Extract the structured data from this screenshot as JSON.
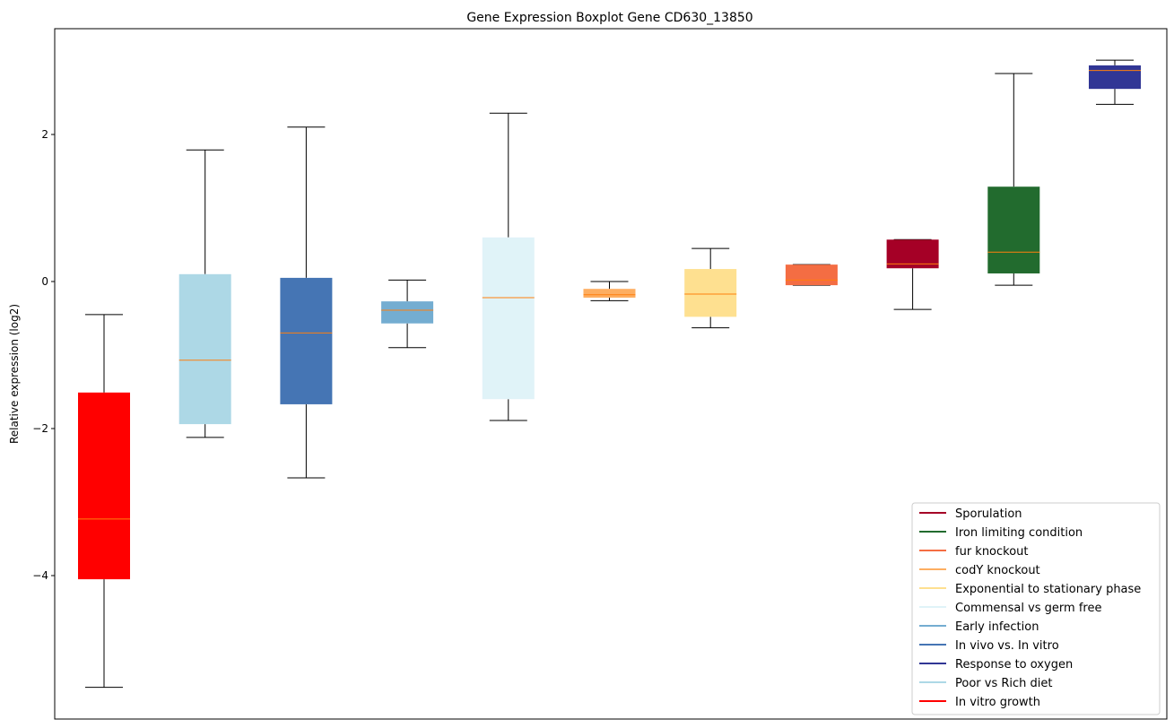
{
  "chart_data": {
    "type": "box",
    "title": "Gene Expression Boxplot Gene CD630_13850",
    "xlabel": "",
    "ylabel": "Relative expression (log2)",
    "ylim": [
      -5.85,
      3.55
    ],
    "yticks": [
      2,
      0,
      -2,
      -4
    ],
    "ytick_labels": [
      "2",
      "0",
      "−2",
      "−4"
    ],
    "legend_position": "lower-right",
    "median_color": "#ff7f0e",
    "boxes": [
      {
        "name": "In vitro growth",
        "color": "#ff0000",
        "whislo": -5.52,
        "q1": -4.05,
        "med": -3.23,
        "q3": -1.51,
        "whishi": -0.45
      },
      {
        "name": "Poor vs Rich diet",
        "color": "#add8e6",
        "whislo": -2.12,
        "q1": -1.94,
        "med": -1.07,
        "q3": 0.1,
        "whishi": 1.79
      },
      {
        "name": "In vivo vs. In vitro",
        "color": "#4575b4",
        "whislo": -2.67,
        "q1": -1.67,
        "med": -0.7,
        "q3": 0.05,
        "whishi": 2.1
      },
      {
        "name": "Early infection",
        "color": "#74add1",
        "whislo": -0.9,
        "q1": -0.57,
        "med": -0.39,
        "q3": -0.27,
        "whishi": 0.02
      },
      {
        "name": "Commensal vs germ free",
        "color": "#e0f3f8",
        "whislo": -1.89,
        "q1": -1.6,
        "med": -0.22,
        "q3": 0.6,
        "whishi": 2.29
      },
      {
        "name": "codY knockout",
        "color": "#fdae61",
        "whislo": -0.26,
        "q1": -0.22,
        "med": -0.18,
        "q3": -0.1,
        "whishi": 0.0
      },
      {
        "name": "Exponential to stationary phase",
        "color": "#fee090",
        "whislo": -0.63,
        "q1": -0.48,
        "med": -0.17,
        "q3": 0.17,
        "whishi": 0.45
      },
      {
        "name": "fur knockout",
        "color": "#f46d43",
        "whislo": -0.05,
        "q1": -0.05,
        "med": 0.02,
        "q3": 0.23,
        "whishi": 0.23
      },
      {
        "name": "Sporulation",
        "color": "#a50026",
        "whislo": -0.38,
        "q1": 0.18,
        "med": 0.24,
        "q3": 0.57,
        "whishi": 0.57
      },
      {
        "name": "Iron limiting condition",
        "color": "#226b2e",
        "whislo": -0.05,
        "q1": 0.11,
        "med": 0.4,
        "q3": 1.29,
        "whishi": 2.83
      },
      {
        "name": "Response to oxygen",
        "color": "#313695",
        "whislo": 2.41,
        "q1": 2.62,
        "med": 2.87,
        "q3": 2.94,
        "whishi": 3.01
      }
    ],
    "legend": [
      {
        "label": "Sporulation",
        "color": "#a50026"
      },
      {
        "label": "Iron limiting condition",
        "color": "#226b2e"
      },
      {
        "label": "fur knockout",
        "color": "#f46d43"
      },
      {
        "label": "codY knockout",
        "color": "#fdae61"
      },
      {
        "label": "Exponential to stationary phase",
        "color": "#fee090"
      },
      {
        "label": "Commensal vs germ free",
        "color": "#e0f3f8"
      },
      {
        "label": "Early infection",
        "color": "#74add1"
      },
      {
        "label": "In vivo vs. In vitro",
        "color": "#4575b4"
      },
      {
        "label": "Response to oxygen",
        "color": "#313695"
      },
      {
        "label": "Poor vs Rich diet",
        "color": "#add8e6"
      },
      {
        "label": "In vitro growth",
        "color": "#ff0000"
      }
    ]
  }
}
